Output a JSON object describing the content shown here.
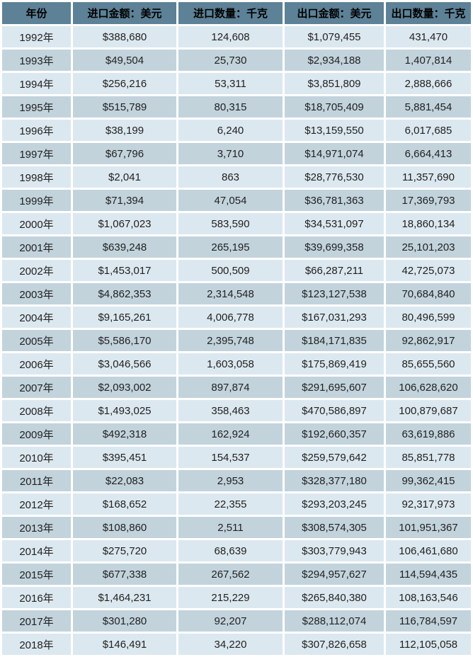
{
  "colors": {
    "header_bg": "#5d8196",
    "row_light_bg": "#dce8ef",
    "row_dark_bg": "#c2d3dc",
    "separator": "#ffffff",
    "header_text": "#000000",
    "cell_text": "#222222"
  },
  "table": {
    "columns": [
      "年份",
      "进口金额：美元",
      "进口数量：千克",
      "出口金额：美元",
      "出口数量：千克"
    ],
    "rows": [
      [
        "1992年",
        "$388,680",
        "124,608",
        "$1,079,455",
        "431,470"
      ],
      [
        "1993年",
        "$49,504",
        "25,730",
        "$2,934,188",
        "1,407,814"
      ],
      [
        "1994年",
        "$256,216",
        "53,311",
        "$3,851,809",
        "2,888,666"
      ],
      [
        "1995年",
        "$515,789",
        "80,315",
        "$18,705,409",
        "5,881,454"
      ],
      [
        "1996年",
        "$38,199",
        "6,240",
        "$13,159,550",
        "6,017,685"
      ],
      [
        "1997年",
        "$67,796",
        "3,710",
        "$14,971,074",
        "6,664,413"
      ],
      [
        "1998年",
        "$2,041",
        "863",
        "$28,776,530",
        "11,357,690"
      ],
      [
        "1999年",
        "$71,394",
        "47,054",
        "$36,781,363",
        "17,369,793"
      ],
      [
        "2000年",
        "$1,067,023",
        "583,590",
        "$34,531,097",
        "18,860,134"
      ],
      [
        "2001年",
        "$639,248",
        "265,195",
        "$39,699,358",
        "25,101,203"
      ],
      [
        "2002年",
        "$1,453,017",
        "500,509",
        "$66,287,211",
        "42,725,073"
      ],
      [
        "2003年",
        "$4,862,353",
        "2,314,548",
        "$123,127,538",
        "70,684,840"
      ],
      [
        "2004年",
        "$9,165,261",
        "4,006,778",
        "$167,031,293",
        "80,496,599"
      ],
      [
        "2005年",
        "$5,586,170",
        "2,395,748",
        "$184,171,835",
        "92,862,917"
      ],
      [
        "2006年",
        "$3,046,566",
        "1,603,058",
        "$175,869,419",
        "85,655,560"
      ],
      [
        "2007年",
        "$2,093,002",
        "897,874",
        "$291,695,607",
        "106,628,620"
      ],
      [
        "2008年",
        "$1,493,025",
        "358,463",
        "$470,586,897",
        "100,879,687"
      ],
      [
        "2009年",
        "$492,318",
        "162,924",
        "$192,660,357",
        "63,619,886"
      ],
      [
        "2010年",
        "$395,451",
        "154,537",
        "$259,579,642",
        "85,851,778"
      ],
      [
        "2011年",
        "$22,083",
        "2,953",
        "$328,377,180",
        "99,362,415"
      ],
      [
        "2012年",
        "$168,652",
        "22,355",
        "$293,203,245",
        "92,317,973"
      ],
      [
        "2013年",
        "$108,860",
        "2,511",
        "$308,574,305",
        "101,951,367"
      ],
      [
        "2014年",
        "$275,720",
        "68,639",
        "$303,779,943",
        "106,461,680"
      ],
      [
        "2015年",
        "$677,338",
        "267,562",
        "$294,957,627",
        "114,594,435"
      ],
      [
        "2016年",
        "$1,464,231",
        "215,229",
        "$265,840,380",
        "108,163,546"
      ],
      [
        "2017年",
        "$301,280",
        "92,207",
        "$288,112,074",
        "116,784,597"
      ],
      [
        "2018年",
        "$146,491",
        "34,220",
        "$307,826,658",
        "112,105,058"
      ]
    ]
  },
  "chart_data": {
    "type": "table",
    "title": "",
    "categories": [
      "1992年",
      "1993年",
      "1994年",
      "1995年",
      "1996年",
      "1997年",
      "1998年",
      "1999年",
      "2000年",
      "2001年",
      "2002年",
      "2003年",
      "2004年",
      "2005年",
      "2006年",
      "2007年",
      "2008年",
      "2009年",
      "2010年",
      "2011年",
      "2012年",
      "2013年",
      "2014年",
      "2015年",
      "2016年",
      "2017年",
      "2018年"
    ],
    "series": [
      {
        "name": "进口金额：美元",
        "values": [
          388680,
          49504,
          256216,
          515789,
          38199,
          67796,
          2041,
          71394,
          1067023,
          639248,
          1453017,
          4862353,
          9165261,
          5586170,
          3046566,
          2093002,
          1493025,
          492318,
          395451,
          22083,
          168652,
          108860,
          275720,
          677338,
          1464231,
          301280,
          146491
        ]
      },
      {
        "name": "进口数量：千克",
        "values": [
          124608,
          25730,
          53311,
          80315,
          6240,
          3710,
          863,
          47054,
          583590,
          265195,
          500509,
          2314548,
          4006778,
          2395748,
          1603058,
          897874,
          358463,
          162924,
          154537,
          2953,
          22355,
          2511,
          68639,
          267562,
          215229,
          92207,
          34220
        ]
      },
      {
        "name": "出口金额：美元",
        "values": [
          1079455,
          2934188,
          3851809,
          18705409,
          13159550,
          14971074,
          28776530,
          36781363,
          34531097,
          39699358,
          66287211,
          123127538,
          167031293,
          184171835,
          175869419,
          291695607,
          470586897,
          192660357,
          259579642,
          328377180,
          293203245,
          308574305,
          303779943,
          294957627,
          265840380,
          288112074,
          307826658
        ]
      },
      {
        "name": "出口数量：千克",
        "values": [
          431470,
          1407814,
          2888666,
          5881454,
          6017685,
          6664413,
          11357690,
          17369793,
          18860134,
          25101203,
          42725073,
          70684840,
          80496599,
          92862917,
          85655560,
          106628620,
          100879687,
          63619886,
          85851778,
          99362415,
          92317973,
          101951367,
          106461680,
          114594435,
          108163546,
          116784597,
          112105058
        ]
      }
    ],
    "layout": {
      "grid": "white 3px separators",
      "striped_rows": true
    }
  }
}
